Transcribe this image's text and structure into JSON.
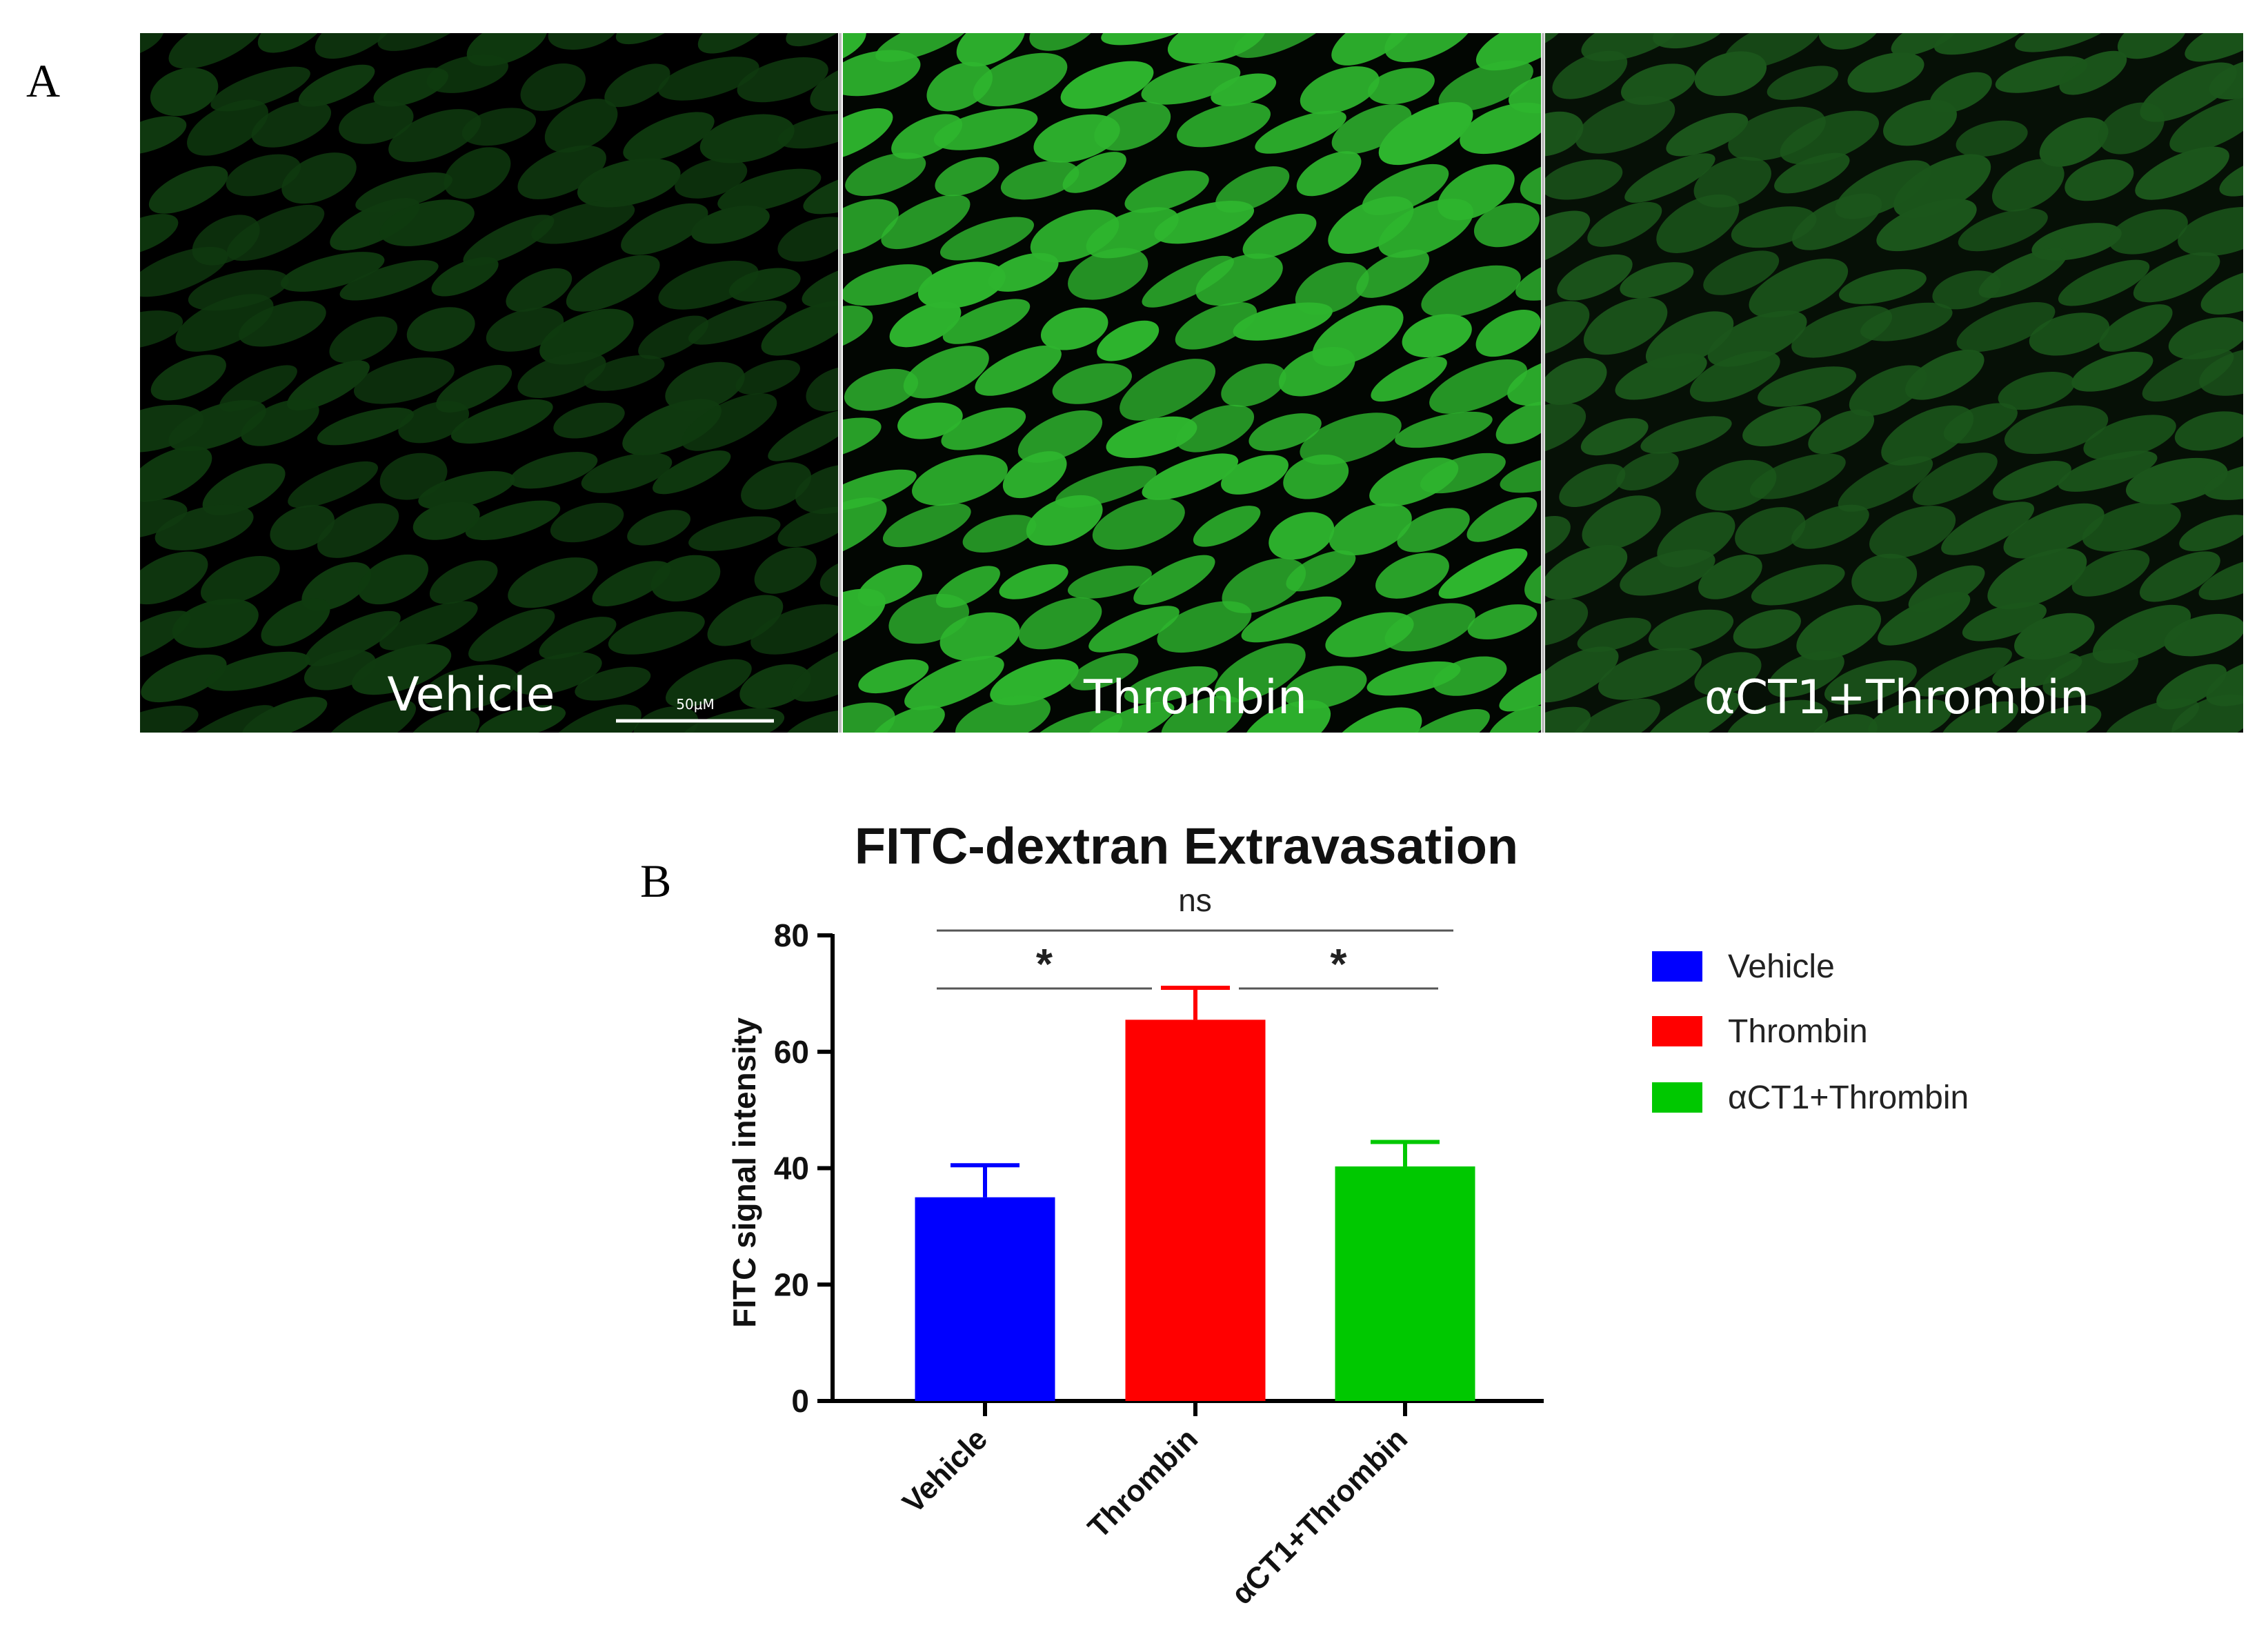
{
  "figure": {
    "panel_a_label": "A",
    "panel_b_label": "B"
  },
  "micrographs": [
    {
      "label": "Vehicle",
      "brightness": "dim",
      "fill": "#0f3a0f",
      "gap": "#000000"
    },
    {
      "label": "Thrombin",
      "brightness": "bright",
      "fill": "#2eb52e",
      "gap": "#020602"
    },
    {
      "label": "αCT1+Thrombin",
      "brightness": "medium",
      "fill": "#1b561b",
      "gap": "#061006"
    }
  ],
  "scale_bar": {
    "label": "50μM"
  },
  "chart_data": {
    "type": "bar",
    "title": "FITC-dextran Extravasation",
    "xlabel": "",
    "ylabel": "FITC signal intensity",
    "categories": [
      "Vehicle",
      "Thrombin",
      "αCT1+Thrombin"
    ],
    "values": [
      35,
      65.5,
      40.3
    ],
    "errors": [
      5.5,
      5.5,
      4.2
    ],
    "colors": [
      "#0000ff",
      "#ff0000",
      "#00c800"
    ],
    "ylim": [
      0,
      80
    ],
    "yticks": [
      0,
      20,
      40,
      60,
      80
    ],
    "grid": false,
    "legend": {
      "position": "right",
      "entries": [
        "Vehicle",
        "Thrombin",
        "αCT1+Thrombin"
      ]
    },
    "significance": [
      {
        "from": 0,
        "to": 2,
        "label": "ns"
      },
      {
        "from": 0,
        "to": 1,
        "label": "*"
      },
      {
        "from": 1,
        "to": 2,
        "label": "*"
      }
    ]
  }
}
